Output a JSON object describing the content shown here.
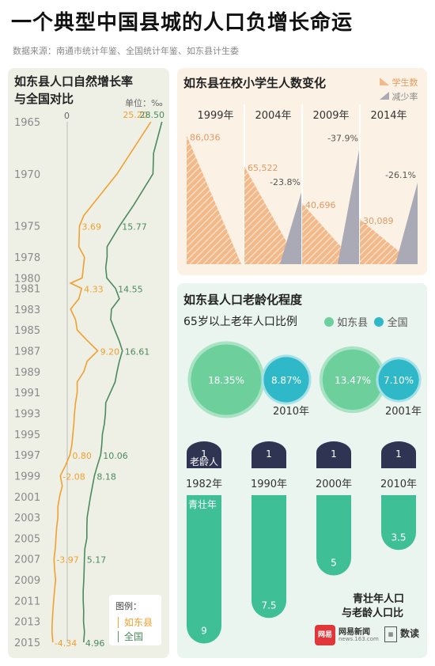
{
  "title": "一个典型中国县城的人口负增长命运",
  "source": "数据来源：南通市统计年鉴、全国统计年鉴、如东县计生委",
  "chart_data": [
    {
      "id": "growth",
      "type": "line",
      "title": "如东县人口自然增长率\n与全国对比",
      "title_line1": "如东县人口自然增长率",
      "title_line2": "与全国对比",
      "unit": "单位：‰",
      "zero_label": "0",
      "legend_title": "图例：",
      "years": [
        "1965",
        "1970",
        "1975",
        "1978",
        "1980",
        "1981",
        "1983",
        "1985",
        "1987",
        "1989",
        "1991",
        "1993",
        "1995",
        "1997",
        "1999",
        "2001",
        "2003",
        "2005",
        "2007",
        "2009",
        "2011",
        "2013",
        "2015"
      ],
      "series": [
        {
          "name": "如东县",
          "color": "#f0a030",
          "points": [
            [
              1965,
              25.2
            ],
            [
              1970,
              15.0
            ],
            [
              1974,
              5.0
            ],
            [
              1975,
              3.69
            ],
            [
              1977,
              3.5
            ],
            [
              1978,
              5.2
            ],
            [
              1980,
              4.5
            ],
            [
              1980.5,
              1.0
            ],
            [
              1981,
              4.33
            ],
            [
              1982,
              3.5
            ],
            [
              1983,
              1.0
            ],
            [
              1984,
              2.5
            ],
            [
              1985,
              3.0
            ],
            [
              1986,
              6.0
            ],
            [
              1987,
              9.2
            ],
            [
              1988,
              6.0
            ],
            [
              1989,
              5.0
            ],
            [
              1990,
              3.0
            ],
            [
              1991,
              3.0
            ],
            [
              1992,
              2.5
            ],
            [
              1993,
              2.2
            ],
            [
              1994,
              2.0
            ],
            [
              1995,
              1.7
            ],
            [
              1996,
              1.4
            ],
            [
              1997,
              0.8
            ],
            [
              1998,
              -0.5
            ],
            [
              1999,
              -2.08
            ],
            [
              2000,
              -1.5
            ],
            [
              2001,
              -2.3
            ],
            [
              2002,
              -2.8
            ],
            [
              2003,
              -2.8
            ],
            [
              2004,
              -3.2
            ],
            [
              2005,
              -3.4
            ],
            [
              2006,
              -3.6
            ],
            [
              2007,
              -3.97
            ],
            [
              2008,
              -3.8
            ],
            [
              2009,
              -3.5
            ],
            [
              2010,
              -3.8
            ],
            [
              2011,
              -4.1
            ],
            [
              2012,
              -4.3
            ],
            [
              2013,
              -4.5
            ],
            [
              2014,
              -4.6
            ],
            [
              2015,
              -4.34
            ]
          ],
          "labels": [
            {
              "year": 1965,
              "value": 25.2,
              "text": "25.20"
            },
            {
              "year": 1975,
              "value": 3.69,
              "text": "3.69"
            },
            {
              "year": 1981,
              "value": 4.33,
              "text": "4.33"
            },
            {
              "year": 1987,
              "value": 9.2,
              "text": "9.20"
            },
            {
              "year": 1997,
              "value": 0.8,
              "text": "0.80"
            },
            {
              "year": 1999,
              "value": -2.08,
              "text": "-2.08"
            },
            {
              "year": 2007,
              "value": -3.97,
              "text": "-3.97"
            },
            {
              "year": 2015,
              "value": -4.34,
              "text": "-4.34"
            }
          ]
        },
        {
          "name": "全国",
          "color": "#4a8a5e",
          "points": [
            [
              1965,
              28.5
            ],
            [
              1968,
              26.0
            ],
            [
              1970,
              25.8
            ],
            [
              1973,
              20.0
            ],
            [
              1975,
              15.77
            ],
            [
              1977,
              12.0
            ],
            [
              1978,
              12.0
            ],
            [
              1979,
              11.6
            ],
            [
              1980,
              11.9
            ],
            [
              1981,
              14.55
            ],
            [
              1982,
              15.7
            ],
            [
              1983,
              13.3
            ],
            [
              1984,
              13.1
            ],
            [
              1985,
              14.3
            ],
            [
              1986,
              15.6
            ],
            [
              1987,
              16.61
            ],
            [
              1988,
              15.7
            ],
            [
              1989,
              15.0
            ],
            [
              1990,
              14.4
            ],
            [
              1991,
              13.0
            ],
            [
              1992,
              11.6
            ],
            [
              1993,
              11.5
            ],
            [
              1994,
              11.2
            ],
            [
              1995,
              10.6
            ],
            [
              1996,
              10.4
            ],
            [
              1997,
              10.06
            ],
            [
              1998,
              9.1
            ],
            [
              1999,
              8.18
            ],
            [
              2000,
              7.6
            ],
            [
              2001,
              7.0
            ],
            [
              2002,
              6.5
            ],
            [
              2003,
              6.0
            ],
            [
              2004,
              5.9
            ],
            [
              2005,
              5.9
            ],
            [
              2006,
              5.3
            ],
            [
              2007,
              5.17
            ],
            [
              2008,
              5.1
            ],
            [
              2009,
              5.0
            ],
            [
              2010,
              4.8
            ],
            [
              2011,
              4.8
            ],
            [
              2012,
              4.95
            ],
            [
              2013,
              4.9
            ],
            [
              2014,
              5.2
            ],
            [
              2015,
              4.96
            ]
          ],
          "labels": [
            {
              "year": 1965,
              "value": 28.5,
              "text": "28.50"
            },
            {
              "year": 1975,
              "value": 15.77,
              "text": "15.77"
            },
            {
              "year": 1981,
              "value": 14.55,
              "text": "14.55"
            },
            {
              "year": 1987,
              "value": 16.61,
              "text": "16.61"
            },
            {
              "year": 1997,
              "value": 10.06,
              "text": "10.06"
            },
            {
              "year": 1999,
              "value": 8.18,
              "text": "8.18"
            },
            {
              "year": 2007,
              "value": 5.17,
              "text": "5.17"
            },
            {
              "year": 2015,
              "value": 4.96,
              "text": "4.96"
            }
          ]
        }
      ]
    },
    {
      "id": "students",
      "type": "area",
      "title": "如东县在校小学生人数变化",
      "legend": {
        "students": "学生数",
        "decline": "减少率"
      },
      "colors": {
        "students": "#f2b98a",
        "decline": "#a9aab6"
      },
      "periods": [
        {
          "year": "1999年",
          "students": 86036,
          "students_text": "86,036",
          "decline": null,
          "decline_text": ""
        },
        {
          "year": "2004年",
          "students": 65522,
          "students_text": "65,522",
          "decline": -23.8,
          "decline_text": "-23.8%"
        },
        {
          "year": "2009年",
          "students": 40696,
          "students_text": "40,696",
          "decline": -37.9,
          "decline_text": "-37.9%"
        },
        {
          "year": "2014年",
          "students": 30089,
          "students_text": "30,089",
          "decline": -26.1,
          "decline_text": "-26.1%"
        }
      ]
    },
    {
      "id": "aging",
      "type": "bubble",
      "title": "如东县人口老龄化程度",
      "subtitle": "65岁以上老年人口比例",
      "legend": [
        {
          "name": "如东县",
          "color": "#6dcf9c"
        },
        {
          "name": "全国",
          "color": "#2fb9c8"
        }
      ],
      "groups": [
        {
          "year": "2010年",
          "rudong": 18.35,
          "rudong_text": "18.35%",
          "national": 8.87,
          "national_text": "8.87%"
        },
        {
          "year": "2001年",
          "rudong": 13.47,
          "rudong_text": "13.47%",
          "national": 7.1,
          "national_text": "7.10%"
        }
      ]
    },
    {
      "id": "ratio",
      "type": "bar",
      "title_line1": "青壮年人口",
      "title_line2": "与老龄人口比",
      "elder_label": "老龄人",
      "young_label": "青壮年",
      "colors": {
        "elder": "#2e3452",
        "young": "#3fbf96"
      },
      "bars": [
        {
          "year": "1982年",
          "elder": 1,
          "elder_text": "1",
          "young": 9,
          "young_text": "9"
        },
        {
          "year": "1990年",
          "elder": 1,
          "elder_text": "1",
          "young": 7.5,
          "young_text": "7.5"
        },
        {
          "year": "2000年",
          "elder": 1,
          "elder_text": "1",
          "young": 5,
          "young_text": "5"
        },
        {
          "year": "2010年",
          "elder": 1,
          "elder_text": "1",
          "young": 3.5,
          "young_text": "3.5"
        }
      ]
    }
  ],
  "logos": {
    "netease": "网易",
    "netease_news": "网易新闻",
    "netease_url": "news.163.com",
    "shudu": "数读"
  }
}
